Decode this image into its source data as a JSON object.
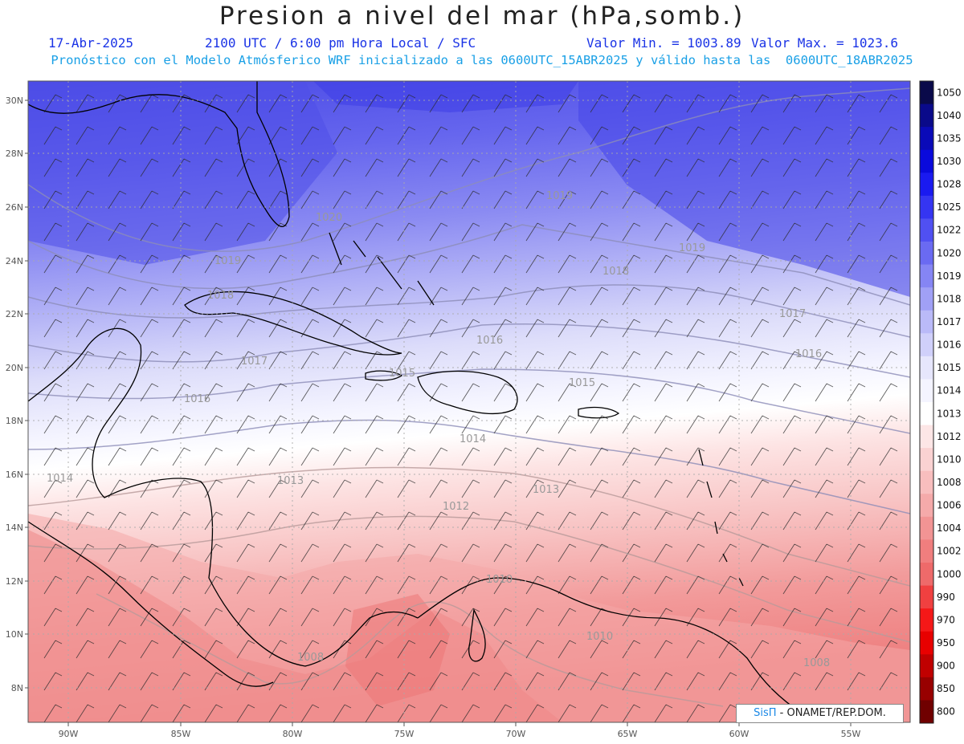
{
  "header": {
    "title": "Presion a nivel del mar (hPa,somb.)",
    "date": "17-Abr-2025",
    "time_info": "2100 UTC / 6:00 pm Hora Local / SFC",
    "min_label": "Valor Min. = 1003.89",
    "max_label": "Valor Max. = 1023.6",
    "forecast_note": "Pronóstico con el Modelo Atmósferico WRF inicializado a las 0600UTC_15ABR2025 y válido hasta las  0600UTC_18ABR2025"
  },
  "map": {
    "variable": "sea-level-pressure",
    "units": "hPa",
    "projection": "lat-lon",
    "lon_range": [
      -92,
      -52
    ],
    "lat_range": [
      7,
      30.5
    ],
    "lon_ticks": [
      "90W",
      "85W",
      "80W",
      "75W",
      "70W",
      "65W",
      "60W",
      "55W"
    ],
    "lat_ticks": [
      "30N",
      "28N",
      "26N",
      "24N",
      "22N",
      "20N",
      "18N",
      "16N",
      "14N",
      "12N",
      "10N",
      "8N"
    ],
    "contour_labels": [
      "1020",
      "1019",
      "1019",
      "1019",
      "1018",
      "1018",
      "1017",
      "1017",
      "1016",
      "1016",
      "1016",
      "1015",
      "1015",
      "1014",
      "1014",
      "1013",
      "1013",
      "1012",
      "1010",
      "1010",
      "1008",
      "1008"
    ],
    "overlays": [
      "wind-barbs",
      "isobars",
      "coastlines",
      "lat-lon-grid"
    ]
  },
  "colorbar": {
    "levels": [
      "1050",
      "1040",
      "1035",
      "1030",
      "1028",
      "1025",
      "1022",
      "1020",
      "1019",
      "1018",
      "1017",
      "1016",
      "1015",
      "1014",
      "1013",
      "1012",
      "1010",
      "1008",
      "1006",
      "1004",
      "1002",
      "1000",
      "990",
      "970",
      "950",
      "900",
      "850",
      "800"
    ],
    "colors": [
      "#0a0a4a",
      "#0a0a8a",
      "#0a0ab8",
      "#0a0adc",
      "#1a1af0",
      "#3535f2",
      "#5050f2",
      "#6a6af2",
      "#8585f4",
      "#a0a0f6",
      "#babaf8",
      "#d0d0fa",
      "#e6e6fc",
      "#f4f4ff",
      "#ffffff",
      "#fde6e6",
      "#fad2d2",
      "#f8bebe",
      "#f5aaaa",
      "#f29494",
      "#f07e7e",
      "#ee6a6a",
      "#f04040",
      "#f51818",
      "#e80000",
      "#c00000",
      "#980000",
      "#700000"
    ]
  },
  "credit": {
    "brand": "SisΠ",
    "text": " - ONAMET/REP.DOM."
  }
}
